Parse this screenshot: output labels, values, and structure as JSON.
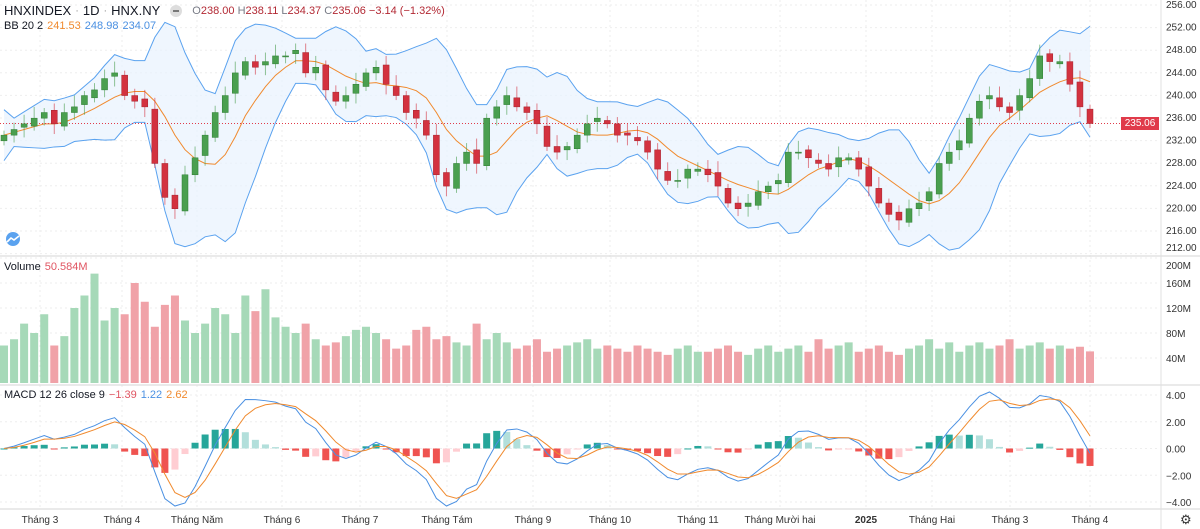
{
  "header": {
    "symbol": "HNXINDEX",
    "interval": "1D",
    "exchange": "HNX.NY",
    "open_label": "O",
    "open": "238.00",
    "high_label": "H",
    "high": "238.11",
    "low_label": "L",
    "low": "234.37",
    "close_label": "C",
    "close": "235.06",
    "change": "−3.14 (−1.32%)"
  },
  "bb": {
    "label": "BB 20 2",
    "basis": "241.53",
    "upper": "248.98",
    "lower": "234.07"
  },
  "volume": {
    "label": "Volume",
    "value": "50.584M"
  },
  "macd": {
    "label": "MACD 12 26 close 9",
    "hist": "−1.39",
    "macd": "1.22",
    "signal": "2.62"
  },
  "colors": {
    "up": "#4a9f4f",
    "down": "#d3323f",
    "vol_up": "#a6d9b8",
    "vol_down": "#f0a2a8",
    "bb_band": "#5aa2ef",
    "bb_basis": "#f08a2e",
    "macd_line": "#4a90e2",
    "signal_line": "#f08a2e",
    "last_price": "#e03b4a"
  },
  "price_axis": [
    "256.00",
    "252.00",
    "248.00",
    "244.00",
    "240.00",
    "236.00",
    "232.00",
    "228.00",
    "224.00",
    "220.00",
    "216.00",
    "212.00"
  ],
  "volume_axis": [
    "200M",
    "160M",
    "120M",
    "80M",
    "40M"
  ],
  "macd_axis": [
    "4.00",
    "2.00",
    "0.00",
    "−2.00",
    "−4.00"
  ],
  "last_price_label": "235.06",
  "time_axis": [
    "Tháng 3",
    "Tháng 4",
    "Tháng Năm",
    "Tháng 6",
    "Tháng 7",
    "Tháng Tám",
    "Tháng 9",
    "Tháng 10",
    "Tháng 11",
    "Tháng Mười hai",
    "2025",
    "Tháng Hai",
    "Tháng 3",
    "Tháng 4"
  ],
  "chart_data": {
    "type": "candlestick",
    "price_range": [
      212,
      256
    ],
    "closes": [
      233,
      234,
      235,
      236,
      237,
      235,
      237,
      238,
      240,
      241,
      243,
      244,
      240,
      239,
      238,
      228,
      222,
      220,
      226,
      229,
      233,
      237,
      240,
      244,
      246,
      245,
      246,
      247,
      247,
      248,
      244,
      245,
      241,
      239,
      240,
      242,
      244,
      245,
      242,
      240,
      237,
      236,
      233,
      226,
      224,
      228,
      230,
      228,
      236,
      238,
      240,
      238,
      237,
      235,
      231,
      230,
      231,
      233,
      235,
      236,
      235,
      233,
      233,
      232,
      230,
      227,
      225,
      225,
      227,
      227,
      226,
      224,
      221,
      220,
      221,
      223,
      224,
      225,
      230,
      230,
      229,
      228,
      227,
      229,
      229,
      227,
      224,
      221,
      219,
      218,
      220,
      221,
      223,
      228,
      230,
      232,
      236,
      239,
      240,
      238,
      237,
      240,
      243,
      247,
      246,
      246,
      242,
      238,
      235.06
    ],
    "volumes_millions": [
      60,
      70,
      95,
      80,
      110,
      60,
      75,
      120,
      140,
      175,
      100,
      120,
      110,
      160,
      130,
      90,
      125,
      140,
      100,
      80,
      95,
      120,
      110,
      80,
      140,
      115,
      150,
      105,
      90,
      80,
      95,
      70,
      60,
      65,
      75,
      85,
      90,
      80,
      70,
      55,
      60,
      85,
      90,
      70,
      75,
      65,
      60,
      95,
      70,
      80,
      65,
      55,
      60,
      70,
      50,
      55,
      60,
      65,
      70,
      55,
      60,
      55,
      50,
      60,
      55,
      50,
      45,
      55,
      60,
      50,
      50,
      55,
      60,
      50,
      45,
      55,
      60,
      50,
      55,
      60,
      50,
      70,
      55,
      60,
      65,
      50,
      55,
      60,
      50,
      45,
      55,
      60,
      70,
      55,
      65,
      50,
      60,
      65,
      55,
      60,
      70,
      55,
      60,
      65,
      55,
      60,
      55,
      58,
      50.584
    ],
    "volume_range": [
      0,
      200
    ],
    "macd_range": [
      -4.4,
      4.4
    ],
    "grid": true
  }
}
